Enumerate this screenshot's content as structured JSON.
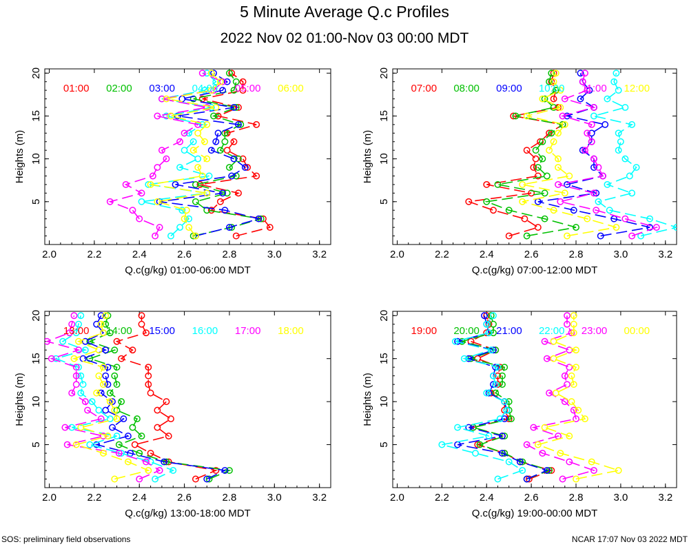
{
  "title": "5 Minute Average Q.c Profiles",
  "subtitle": "2022 Nov 02 01:00-Nov 03 00:00 MDT",
  "footer_left": "SOS: preliminary field observations",
  "footer_right": "NCAR 17:07 Nov 03 2022 MDT",
  "colors": [
    "#ff0000",
    "#00c000",
    "#0000ff",
    "#00ffff",
    "#ff00ff",
    "#ffff00"
  ],
  "chart_data": [
    {
      "type": "line",
      "xlabel": "Q.c(g/kg) 01:00-06:00 MDT",
      "ylabel": "Heights (m)",
      "xlim": [
        1.98,
        3.25
      ],
      "ylim": [
        0,
        20.5
      ],
      "xticks": [
        "2.0",
        "2.2",
        "2.4",
        "2.6",
        "2.8",
        "3.0",
        "3.2"
      ],
      "yticks": [
        "5",
        "10",
        "15",
        "20"
      ],
      "heights": [
        1,
        2,
        3,
        4,
        5,
        6,
        7,
        8,
        9,
        10,
        11,
        12,
        13,
        14,
        15,
        16,
        17,
        18,
        19,
        20
      ],
      "series": [
        {
          "name": "01:00",
          "values": [
            2.83,
            2.98,
            2.95,
            2.72,
            2.76,
            2.84,
            2.67,
            2.92,
            2.88,
            2.86,
            2.79,
            2.82,
            2.79,
            2.92,
            2.75,
            2.84,
            2.68,
            2.86,
            2.86,
            2.81
          ]
        },
        {
          "name": "02:00",
          "values": [
            2.64,
            2.81,
            2.94,
            2.7,
            2.65,
            2.79,
            2.65,
            2.83,
            2.8,
            2.84,
            2.76,
            2.78,
            2.78,
            2.85,
            2.73,
            2.83,
            2.64,
            2.82,
            2.83,
            2.8
          ]
        },
        {
          "name": "03:00",
          "values": [
            2.65,
            2.8,
            2.93,
            2.78,
            2.49,
            2.77,
            2.56,
            2.81,
            2.87,
            2.82,
            2.72,
            2.74,
            2.75,
            2.84,
            2.57,
            2.82,
            2.59,
            2.77,
            2.79,
            2.73
          ]
        },
        {
          "name": "04:00",
          "values": [
            2.54,
            2.58,
            2.62,
            2.59,
            2.41,
            2.7,
            2.44,
            2.71,
            2.58,
            2.66,
            2.6,
            2.64,
            2.62,
            2.68,
            2.52,
            2.72,
            2.5,
            2.69,
            2.74,
            2.7
          ]
        },
        {
          "name": "05:00",
          "values": [
            2.47,
            2.49,
            2.4,
            2.37,
            2.27,
            2.41,
            2.34,
            2.46,
            2.48,
            2.52,
            2.5,
            2.58,
            2.6,
            2.66,
            2.48,
            2.7,
            2.5,
            2.73,
            2.77,
            2.68
          ]
        },
        {
          "name": "06:00",
          "values": [
            2.65,
            2.62,
            2.6,
            2.61,
            2.48,
            2.7,
            2.45,
            2.68,
            2.66,
            2.7,
            2.64,
            2.69,
            2.66,
            2.7,
            2.54,
            2.74,
            2.52,
            2.72,
            2.76,
            2.72
          ]
        }
      ]
    },
    {
      "type": "line",
      "xlabel": "Q.c(g/kg) 07:00-12:00 MDT",
      "ylabel": "Heights (m)",
      "xlim": [
        1.98,
        3.25
      ],
      "ylim": [
        0,
        20.5
      ],
      "xticks": [
        "2.0",
        "2.2",
        "2.4",
        "2.6",
        "2.8",
        "3.0",
        "3.2"
      ],
      "yticks": [
        "5",
        "10",
        "15",
        "20"
      ],
      "heights": [
        1,
        2,
        3,
        4,
        5,
        6,
        7,
        8,
        9,
        10,
        11,
        12,
        13,
        14,
        15,
        16,
        17,
        18,
        19,
        20
      ],
      "series": [
        {
          "name": "07:00",
          "values": [
            2.5,
            2.63,
            2.57,
            2.43,
            2.32,
            2.6,
            2.4,
            2.63,
            2.61,
            2.62,
            2.58,
            2.64,
            2.68,
            2.74,
            2.52,
            2.72,
            2.7,
            2.71,
            2.69,
            2.7
          ]
        },
        {
          "name": "08:00",
          "values": [
            2.58,
            2.8,
            2.66,
            2.5,
            2.4,
            2.66,
            2.45,
            2.67,
            2.63,
            2.65,
            2.62,
            2.65,
            2.69,
            2.74,
            2.53,
            2.7,
            2.66,
            2.71,
            2.68,
            2.69
          ]
        },
        {
          "name": "09:00",
          "values": [
            2.91,
            3.13,
            2.97,
            2.79,
            2.63,
            2.89,
            2.76,
            2.92,
            2.88,
            2.88,
            2.83,
            2.87,
            2.87,
            2.93,
            2.76,
            2.88,
            2.82,
            2.86,
            2.83,
            2.82
          ]
        },
        {
          "name": "10:00",
          "values": [
            3.09,
            3.25,
            3.13,
            2.95,
            2.9,
            3.05,
            2.94,
            3.04,
            3.07,
            3.02,
            2.99,
            3.0,
            2.99,
            3.05,
            2.88,
            3.02,
            2.94,
            2.99,
            2.97,
            2.98
          ]
        },
        {
          "name": "11:00",
          "values": [
            3.05,
            3.16,
            3.02,
            2.89,
            2.73,
            2.88,
            2.72,
            2.92,
            2.9,
            2.88,
            2.84,
            2.87,
            2.85,
            2.87,
            2.74,
            2.88,
            2.75,
            2.85,
            2.83,
            2.84
          ]
        },
        {
          "name": "12:00",
          "values": [
            2.76,
            2.98,
            2.85,
            2.7,
            2.56,
            2.75,
            2.56,
            2.77,
            2.72,
            2.72,
            2.68,
            2.7,
            2.72,
            2.75,
            2.58,
            2.73,
            2.65,
            2.73,
            2.7,
            2.71
          ]
        }
      ]
    },
    {
      "type": "line",
      "xlabel": "Q.c(g/kg) 13:00-18:00 MDT",
      "ylabel": "Heights (m)",
      "xlim": [
        1.98,
        3.25
      ],
      "ylim": [
        0,
        20.5
      ],
      "xticks": [
        "2.0",
        "2.2",
        "2.4",
        "2.6",
        "2.8",
        "3.0",
        "3.2"
      ],
      "yticks": [
        "5",
        "10",
        "15",
        "20"
      ],
      "heights": [
        1,
        2,
        3,
        4,
        5,
        6,
        7,
        8,
        9,
        10,
        11,
        12,
        13,
        14,
        15,
        16,
        17,
        18,
        19,
        20
      ],
      "series": [
        {
          "name": "13:00",
          "values": [
            2.65,
            2.74,
            2.53,
            2.45,
            2.38,
            2.53,
            2.48,
            2.54,
            2.48,
            2.52,
            2.45,
            2.44,
            2.44,
            2.44,
            2.32,
            2.37,
            2.3,
            2.43,
            2.41,
            2.41
          ]
        },
        {
          "name": "14:00",
          "values": [
            2.71,
            2.8,
            2.52,
            2.4,
            2.31,
            2.41,
            2.37,
            2.39,
            2.3,
            2.32,
            2.27,
            2.3,
            2.29,
            2.3,
            2.18,
            2.29,
            2.18,
            2.27,
            2.25,
            2.26
          ]
        },
        {
          "name": "15:00",
          "values": [
            2.7,
            2.78,
            2.51,
            2.36,
            2.21,
            2.35,
            2.28,
            2.33,
            2.25,
            2.28,
            2.23,
            2.26,
            2.25,
            2.26,
            2.15,
            2.25,
            2.16,
            2.24,
            2.21,
            2.23
          ]
        },
        {
          "name": "16:00",
          "values": [
            2.47,
            2.55,
            2.45,
            2.32,
            2.18,
            2.3,
            2.1,
            2.27,
            2.22,
            2.19,
            2.14,
            2.15,
            2.14,
            2.13,
            2.03,
            2.16,
            2.06,
            2.12,
            2.13,
            2.14
          ]
        },
        {
          "name": "17:00",
          "values": [
            2.4,
            2.49,
            2.43,
            2.31,
            2.08,
            2.24,
            2.07,
            2.23,
            2.17,
            2.16,
            2.1,
            2.12,
            2.12,
            2.12,
            2.01,
            2.13,
            1.99,
            2.09,
            2.1,
            2.11
          ]
        },
        {
          "name": "18:00",
          "values": [
            2.29,
            2.44,
            2.35,
            2.24,
            2.12,
            2.26,
            2.14,
            2.3,
            2.29,
            2.27,
            2.21,
            2.24,
            2.22,
            2.24,
            2.11,
            2.22,
            2.13,
            2.24,
            2.23,
            2.25
          ]
        }
      ]
    },
    {
      "type": "line",
      "xlabel": "Q.c(g/kg) 19:00-00:00 MDT",
      "ylabel": "Heights (m)",
      "xlim": [
        1.98,
        3.25
      ],
      "ylim": [
        0,
        20.5
      ],
      "xticks": [
        "2.0",
        "2.2",
        "2.4",
        "2.6",
        "2.8",
        "3.0",
        "3.2"
      ],
      "yticks": [
        "5",
        "10",
        "15",
        "20"
      ],
      "heights": [
        1,
        2,
        3,
        4,
        5,
        6,
        7,
        8,
        9,
        10,
        11,
        12,
        13,
        14,
        15,
        16,
        17,
        18,
        19,
        20
      ],
      "series": [
        {
          "name": "19:00",
          "values": [
            2.59,
            2.69,
            2.55,
            2.48,
            2.36,
            2.47,
            2.34,
            2.5,
            2.48,
            2.48,
            2.42,
            2.45,
            2.45,
            2.46,
            2.36,
            2.44,
            2.33,
            2.4,
            2.41,
            2.4
          ]
        },
        {
          "name": "20:00",
          "values": [
            2.58,
            2.68,
            2.56,
            2.48,
            2.37,
            2.48,
            2.34,
            2.51,
            2.5,
            2.5,
            2.44,
            2.47,
            2.47,
            2.48,
            2.33,
            2.44,
            2.29,
            2.43,
            2.43,
            2.42
          ]
        },
        {
          "name": "21:00",
          "values": [
            2.58,
            2.67,
            2.55,
            2.47,
            2.27,
            2.47,
            2.32,
            2.48,
            2.49,
            2.48,
            2.41,
            2.43,
            2.43,
            2.44,
            2.32,
            2.43,
            2.27,
            2.41,
            2.4,
            2.39
          ]
        },
        {
          "name": "22:00",
          "values": [
            2.45,
            2.56,
            2.5,
            2.35,
            2.2,
            2.41,
            2.27,
            2.46,
            2.49,
            2.48,
            2.4,
            2.44,
            2.43,
            2.45,
            2.3,
            2.42,
            2.26,
            2.41,
            2.4,
            2.43
          ]
        },
        {
          "name": "23:00",
          "values": [
            2.74,
            2.88,
            2.77,
            2.65,
            2.58,
            2.72,
            2.61,
            2.8,
            2.79,
            2.75,
            2.68,
            2.76,
            2.75,
            2.77,
            2.67,
            2.77,
            2.66,
            2.78,
            2.76,
            2.76
          ]
        },
        {
          "name": "00:00",
          "values": [
            2.8,
            2.99,
            2.87,
            2.73,
            2.63,
            2.77,
            2.66,
            2.84,
            2.81,
            2.78,
            2.71,
            2.79,
            2.78,
            2.8,
            2.7,
            2.8,
            2.7,
            2.79,
            2.79,
            2.79
          ]
        }
      ]
    }
  ]
}
